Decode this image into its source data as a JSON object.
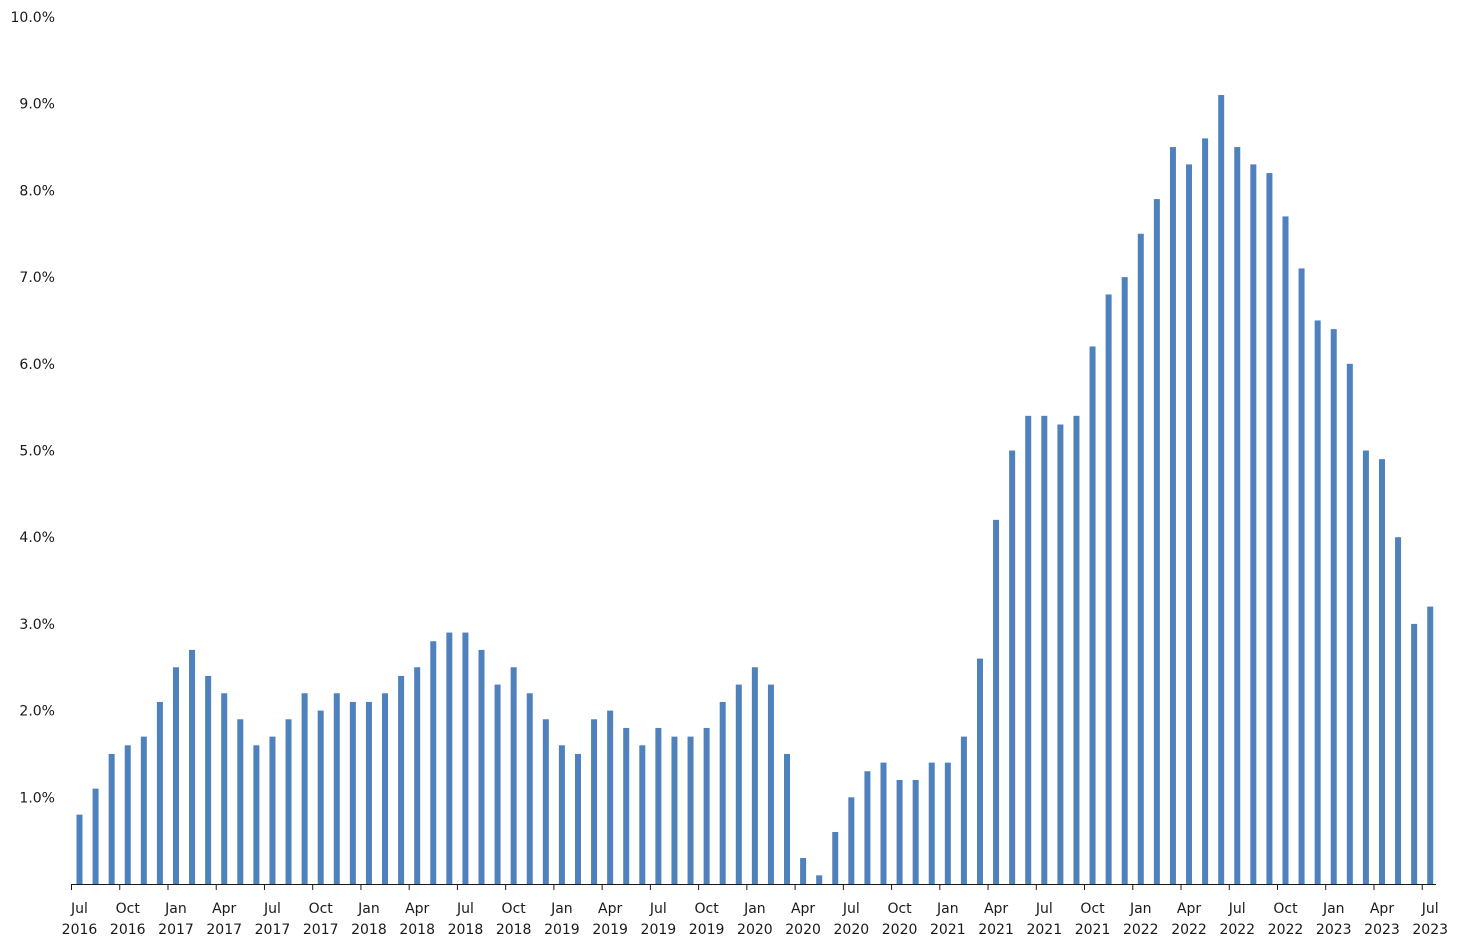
{
  "chart_data": {
    "type": "bar",
    "title": "",
    "xlabel": "",
    "ylabel": "",
    "ylim": [
      0,
      10
    ],
    "y_unit": "%",
    "y_ticks": [
      "1.0%",
      "2.0%",
      "3.0%",
      "4.0%",
      "5.0%",
      "6.0%",
      "7.0%",
      "8.0%",
      "9.0%",
      "10.0%"
    ],
    "grid": false,
    "bar_color": "#4f81bd",
    "categories": [
      "2016-07",
      "2016-08",
      "2016-09",
      "2016-10",
      "2016-11",
      "2016-12",
      "2017-01",
      "2017-02",
      "2017-03",
      "2017-04",
      "2017-05",
      "2017-06",
      "2017-07",
      "2017-08",
      "2017-09",
      "2017-10",
      "2017-11",
      "2017-12",
      "2018-01",
      "2018-02",
      "2018-03",
      "2018-04",
      "2018-05",
      "2018-06",
      "2018-07",
      "2018-08",
      "2018-09",
      "2018-10",
      "2018-11",
      "2018-12",
      "2019-01",
      "2019-02",
      "2019-03",
      "2019-04",
      "2019-05",
      "2019-06",
      "2019-07",
      "2019-08",
      "2019-09",
      "2019-10",
      "2019-11",
      "2019-12",
      "2020-01",
      "2020-02",
      "2020-03",
      "2020-04",
      "2020-05",
      "2020-06",
      "2020-07",
      "2020-08",
      "2020-09",
      "2020-10",
      "2020-11",
      "2020-12",
      "2021-01",
      "2021-02",
      "2021-03",
      "2021-04",
      "2021-05",
      "2021-06",
      "2021-07",
      "2021-08",
      "2021-09",
      "2021-10",
      "2021-11",
      "2021-12",
      "2022-01",
      "2022-02",
      "2022-03",
      "2022-04",
      "2022-05",
      "2022-06",
      "2022-07",
      "2022-08",
      "2022-09",
      "2022-10",
      "2022-11",
      "2022-12",
      "2023-01",
      "2023-02",
      "2023-03",
      "2023-04",
      "2023-05",
      "2023-06",
      "2023-07"
    ],
    "values": [
      0.8,
      1.1,
      1.5,
      1.6,
      1.7,
      2.1,
      2.5,
      2.7,
      2.4,
      2.2,
      1.9,
      1.6,
      1.7,
      1.9,
      2.2,
      2.0,
      2.2,
      2.1,
      2.1,
      2.2,
      2.4,
      2.5,
      2.8,
      2.9,
      2.9,
      2.7,
      2.3,
      2.5,
      2.2,
      1.9,
      1.6,
      1.5,
      1.9,
      2.0,
      1.8,
      1.6,
      1.8,
      1.7,
      1.7,
      1.8,
      2.1,
      2.3,
      2.5,
      2.3,
      1.5,
      0.3,
      0.1,
      0.6,
      1.0,
      1.3,
      1.4,
      1.2,
      1.2,
      1.4,
      1.4,
      1.7,
      2.6,
      4.2,
      5.0,
      5.4,
      5.4,
      5.3,
      5.4,
      6.2,
      6.8,
      7.0,
      7.5,
      7.9,
      8.5,
      8.3,
      8.6,
      9.1,
      8.5,
      8.3,
      8.2,
      7.7,
      7.1,
      6.5,
      6.4,
      6.0,
      5.0,
      4.9,
      4.0,
      3.0,
      3.2
    ],
    "x_tick_labels": [
      {
        "index": 0,
        "month": "Jul",
        "year": "2016"
      },
      {
        "index": 3,
        "month": "Oct",
        "year": "2016"
      },
      {
        "index": 6,
        "month": "Jan",
        "year": "2017"
      },
      {
        "index": 9,
        "month": "Apr",
        "year": "2017"
      },
      {
        "index": 12,
        "month": "Jul",
        "year": "2017"
      },
      {
        "index": 15,
        "month": "Oct",
        "year": "2017"
      },
      {
        "index": 18,
        "month": "Jan",
        "year": "2018"
      },
      {
        "index": 21,
        "month": "Apr",
        "year": "2018"
      },
      {
        "index": 24,
        "month": "Jul",
        "year": "2018"
      },
      {
        "index": 27,
        "month": "Oct",
        "year": "2018"
      },
      {
        "index": 30,
        "month": "Jan",
        "year": "2019"
      },
      {
        "index": 33,
        "month": "Apr",
        "year": "2019"
      },
      {
        "index": 36,
        "month": "Jul",
        "year": "2019"
      },
      {
        "index": 39,
        "month": "Oct",
        "year": "2019"
      },
      {
        "index": 42,
        "month": "Jan",
        "year": "2020"
      },
      {
        "index": 45,
        "month": "Apr",
        "year": "2020"
      },
      {
        "index": 48,
        "month": "Jul",
        "year": "2020"
      },
      {
        "index": 51,
        "month": "Oct",
        "year": "2020"
      },
      {
        "index": 54,
        "month": "Jan",
        "year": "2021"
      },
      {
        "index": 57,
        "month": "Apr",
        "year": "2021"
      },
      {
        "index": 60,
        "month": "Jul",
        "year": "2021"
      },
      {
        "index": 63,
        "month": "Oct",
        "year": "2021"
      },
      {
        "index": 66,
        "month": "Jan",
        "year": "2022"
      },
      {
        "index": 69,
        "month": "Apr",
        "year": "2022"
      },
      {
        "index": 72,
        "month": "Jul",
        "year": "2022"
      },
      {
        "index": 75,
        "month": "Oct",
        "year": "2022"
      },
      {
        "index": 78,
        "month": "Jan",
        "year": "2023"
      },
      {
        "index": 81,
        "month": "Apr",
        "year": "2023"
      },
      {
        "index": 84,
        "month": "Jul",
        "year": "2023"
      }
    ]
  }
}
